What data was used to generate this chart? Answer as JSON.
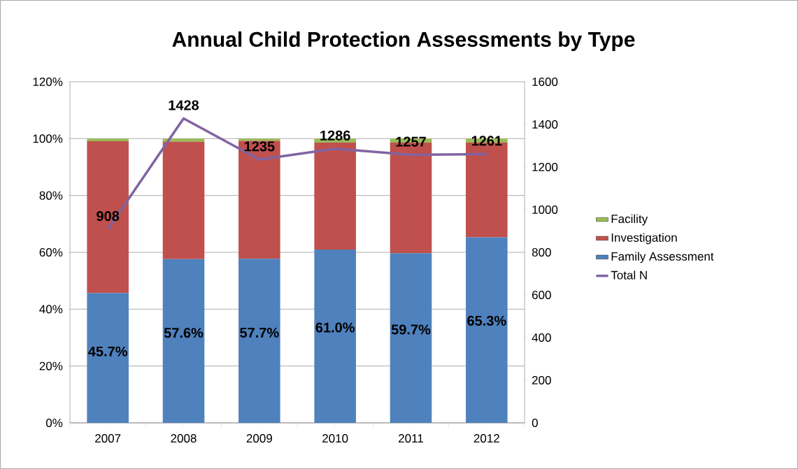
{
  "chart_data": {
    "type": "bar",
    "title": "Annual Child Protection Assessments by Type",
    "categories": [
      "2007",
      "2008",
      "2009",
      "2010",
      "2011",
      "2012"
    ],
    "stacked": true,
    "series": [
      {
        "name": "Family Assessment",
        "color": "#4f81bd",
        "values": [
          45.7,
          57.6,
          57.7,
          61.0,
          59.7,
          65.3
        ],
        "value_labels": [
          "45.7%",
          "57.6%",
          "57.7%",
          "61.0%",
          "59.7%",
          "65.3%"
        ]
      },
      {
        "name": "Investigation",
        "color": "#c0504d",
        "values": [
          53.4,
          41.3,
          41.5,
          37.6,
          38.9,
          33.3
        ]
      },
      {
        "name": "Facility",
        "color": "#9bbb59",
        "values": [
          0.9,
          1.1,
          0.8,
          1.4,
          1.4,
          1.4
        ]
      },
      {
        "name": "Total N",
        "color": "#8064a2",
        "type": "line",
        "axis": "y2",
        "values": [
          908,
          1428,
          1235,
          1286,
          1257,
          1261
        ],
        "value_labels": [
          "908",
          "1428",
          "1235",
          "1286",
          "1257",
          "1261"
        ]
      }
    ],
    "ylim": [
      0,
      120
    ],
    "yticks": [
      {
        "value": 0,
        "label": "0%"
      },
      {
        "value": 20,
        "label": "20%"
      },
      {
        "value": 40,
        "label": "40%"
      },
      {
        "value": 60,
        "label": "60%"
      },
      {
        "value": 80,
        "label": "80%"
      },
      {
        "value": 100,
        "label": "100%"
      },
      {
        "value": 120,
        "label": "120%"
      }
    ],
    "y2lim": [
      0,
      1600
    ],
    "y2ticks": [
      0,
      200,
      400,
      600,
      800,
      1000,
      1200,
      1400,
      1600
    ],
    "grid": "y",
    "legend": "right"
  }
}
